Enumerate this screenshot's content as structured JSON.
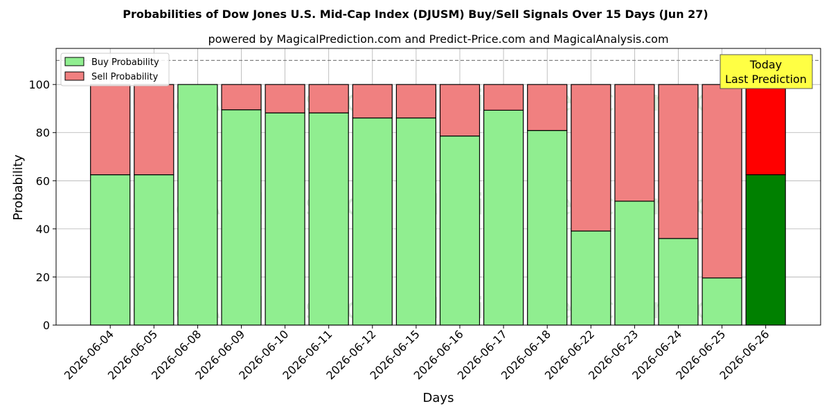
{
  "chart_data": {
    "type": "bar",
    "stacked": true,
    "title": "Probabilities of Dow Jones U.S. Mid-Cap Index (DJUSM) Buy/Sell Signals Over 15 Days (Jun 27)",
    "subtitle": "powered by MagicalPrediction.com and Predict-Price.com and MagicalAnalysis.com",
    "xlabel": "Days",
    "ylabel": "Probability",
    "ylim": [
      0,
      115
    ],
    "yticks": [
      0,
      20,
      40,
      60,
      80,
      100
    ],
    "grid": true,
    "legend_position": "top-left",
    "reference_line": 110,
    "categories": [
      "2026-06-04",
      "2026-06-05",
      "2026-06-08",
      "2026-06-09",
      "2026-06-10",
      "2026-06-11",
      "2026-06-12",
      "2026-06-15",
      "2026-06-16",
      "2026-06-17",
      "2026-06-18",
      "2026-06-22",
      "2026-06-23",
      "2026-06-24",
      "2026-06-25",
      "2026-06-26"
    ],
    "series": [
      {
        "name": "Buy Probability",
        "color": "#90ee90",
        "highlight_color": "#008000",
        "values": [
          62.5,
          62.5,
          100,
          89.5,
          88.2,
          88.2,
          86.1,
          86.1,
          78.6,
          89.3,
          80.9,
          39.1,
          51.5,
          36.0,
          19.6,
          62.5
        ]
      },
      {
        "name": "Sell Probability",
        "color": "#f08080",
        "highlight_color": "#ff0000",
        "values": [
          37.5,
          37.5,
          0,
          10.5,
          11.8,
          11.8,
          13.9,
          13.9,
          21.4,
          10.7,
          19.1,
          60.9,
          48.5,
          64.0,
          80.4,
          37.5
        ]
      }
    ],
    "annotation": {
      "lines": [
        "Today",
        "Last Prediction"
      ],
      "color": "#ffff44"
    },
    "watermarks": [
      "MagicalAnalysis.com",
      "MagicalPrediction.com"
    ]
  }
}
